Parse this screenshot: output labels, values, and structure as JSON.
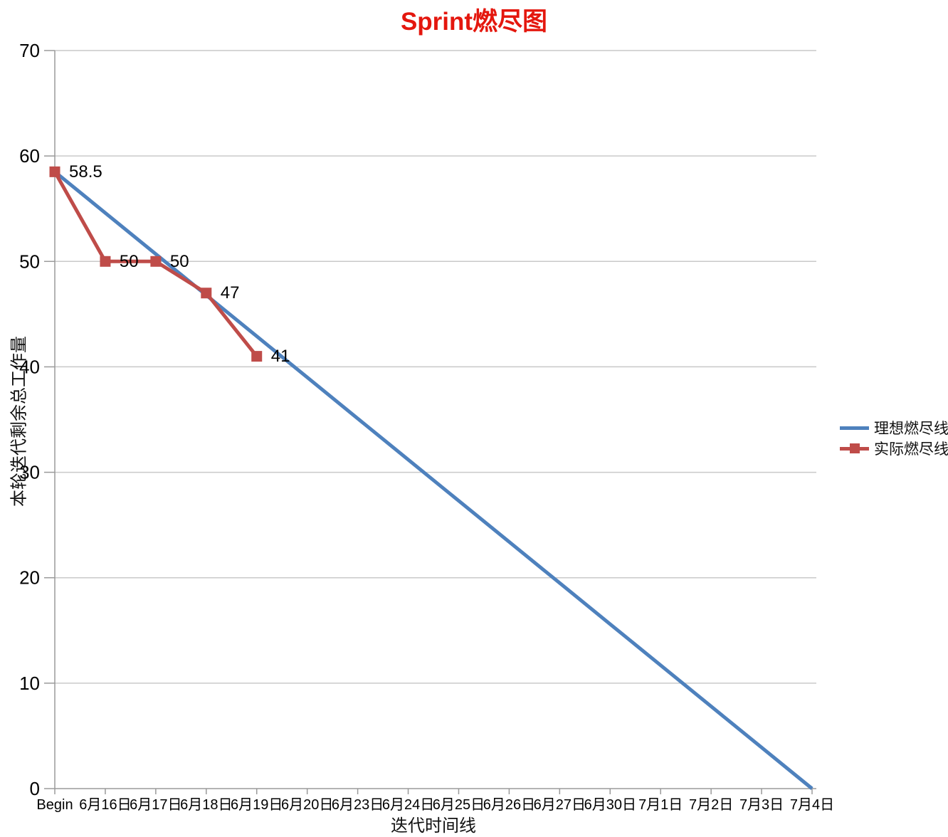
{
  "title": {
    "text": "Sprint燃尽图",
    "color": "#e4170e"
  },
  "chart_data": {
    "type": "line",
    "title": "Sprint燃尽图",
    "xlabel": "迭代时间线",
    "ylabel": "本轮迭代剩余总工作量",
    "ylim": [
      0,
      70
    ],
    "y_ticks": [
      0,
      10,
      20,
      30,
      40,
      50,
      60,
      70
    ],
    "grid": "horizontal",
    "legend_position": "right",
    "categories": [
      "Begin",
      "6月16日",
      "6月17日",
      "6月18日",
      "6月19日",
      "6月20日",
      "6月23日",
      "6月24日",
      "6月25日",
      "6月26日",
      "6月27日",
      "6月30日",
      "7月1日",
      "7月2日",
      "7月3日",
      "7月4日"
    ],
    "series": [
      {
        "name": "理想燃尽线",
        "color": "#4e81bd",
        "marker": "none",
        "values": [
          58.5,
          54.6,
          50.7,
          46.8,
          42.9,
          39,
          35.1,
          31.2,
          27.3,
          23.4,
          19.5,
          15.6,
          11.7,
          7.8,
          3.9,
          0
        ]
      },
      {
        "name": "实际燃尽线",
        "color": "#bf4c49",
        "marker": "square",
        "values": [
          58.5,
          50,
          50,
          47,
          41,
          null,
          null,
          null,
          null,
          null,
          null,
          null,
          null,
          null,
          null,
          null
        ],
        "data_labels": [
          "58.5",
          "50",
          "50",
          "47",
          "41"
        ]
      }
    ],
    "colors": {
      "grid": "#c9c9c9",
      "axis": "#9a9a9a",
      "tick_label": "#000000",
      "data_label": "#000000"
    }
  }
}
